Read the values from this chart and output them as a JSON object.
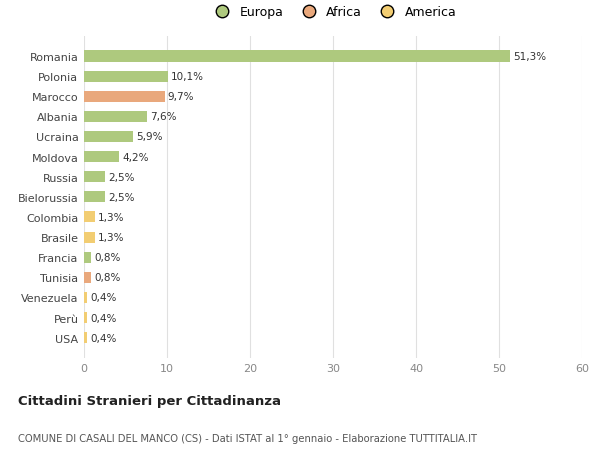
{
  "countries": [
    "Romania",
    "Polonia",
    "Marocco",
    "Albania",
    "Ucraina",
    "Moldova",
    "Russia",
    "Bielorussia",
    "Colombia",
    "Brasile",
    "Francia",
    "Tunisia",
    "Venezuela",
    "Perù",
    "USA"
  ],
  "values": [
    51.3,
    10.1,
    9.7,
    7.6,
    5.9,
    4.2,
    2.5,
    2.5,
    1.3,
    1.3,
    0.8,
    0.8,
    0.4,
    0.4,
    0.4
  ],
  "labels": [
    "51,3%",
    "10,1%",
    "9,7%",
    "7,6%",
    "5,9%",
    "4,2%",
    "2,5%",
    "2,5%",
    "1,3%",
    "1,3%",
    "0,8%",
    "0,8%",
    "0,4%",
    "0,4%",
    "0,4%"
  ],
  "colors": [
    "#aec97e",
    "#aec97e",
    "#e9a87c",
    "#aec97e",
    "#aec97e",
    "#aec97e",
    "#aec97e",
    "#aec97e",
    "#f2cd72",
    "#f2cd72",
    "#aec97e",
    "#e9a87c",
    "#f2cd72",
    "#f2cd72",
    "#f2cd72"
  ],
  "legend_labels": [
    "Europa",
    "Africa",
    "America"
  ],
  "legend_colors": [
    "#aec97e",
    "#e9a87c",
    "#f2cd72"
  ],
  "title": "Cittadini Stranieri per Cittadinanza",
  "subtitle": "COMUNE DI CASALI DEL MANCO (CS) - Dati ISTAT al 1° gennaio - Elaborazione TUTTITALIA.IT",
  "xlim": [
    0,
    60
  ],
  "xticks": [
    0,
    10,
    20,
    30,
    40,
    50,
    60
  ],
  "bg_color": "#ffffff",
  "grid_color": "#e0e0e0",
  "bar_height": 0.55
}
